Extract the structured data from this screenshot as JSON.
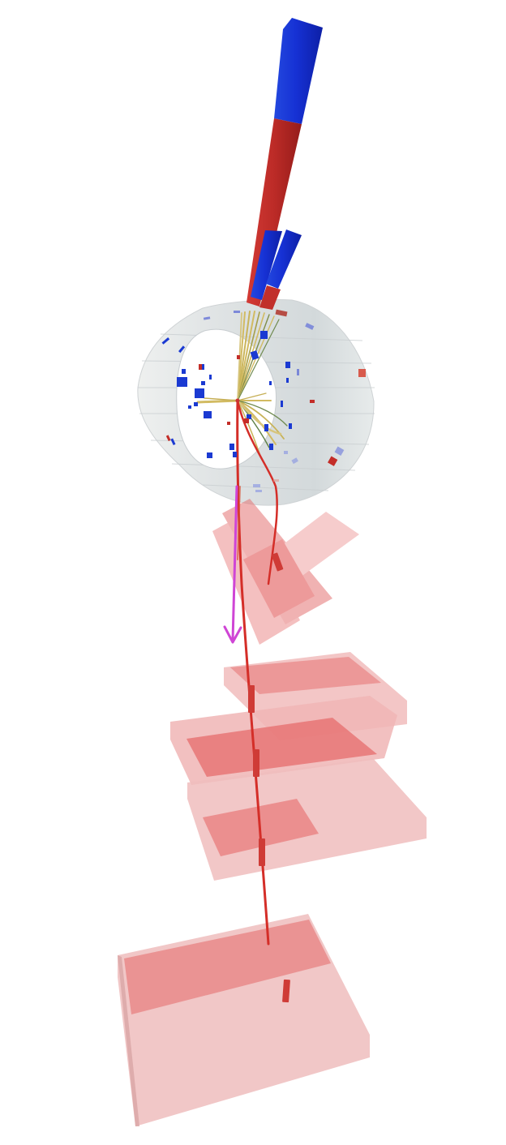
{
  "scene": {
    "background": "#ffffff",
    "colors": {
      "jet_em": "#1528c8",
      "jet_had": "#bd2a26",
      "track": "#d2bb62",
      "track_dark": "#5e7f46",
      "muon_track": "#d42e28",
      "missing_et": "#cf45d5",
      "muon_chamber": "#e35a5a",
      "calorimeter": "#dfe3e4",
      "tile_highlight": "#cf3b36"
    },
    "objects": [
      "inner-detector-cylinder",
      "primary-vertex",
      "charged-tracks",
      "electromagnetic-energy-deposits",
      "hadronic-energy-deposits",
      "jet-energy-towers",
      "muon-track",
      "missing-transverse-energy-arrow",
      "muon-chambers"
    ]
  }
}
